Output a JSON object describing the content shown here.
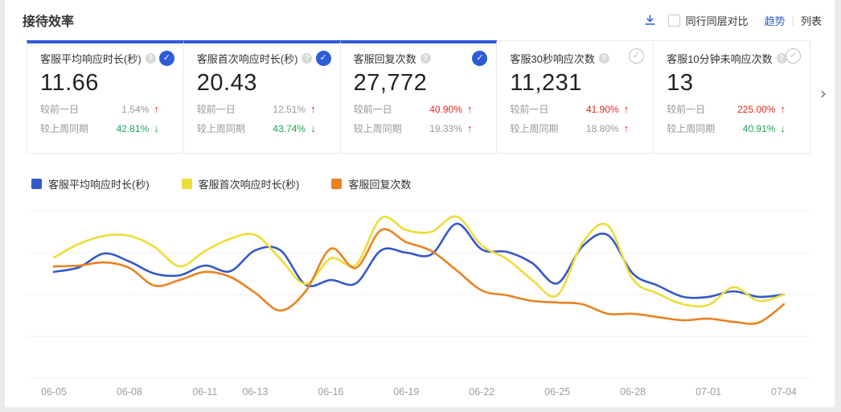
{
  "header": {
    "title": "接待效率",
    "compare_label": "同行同层对比",
    "compare_checked": false,
    "view_trend": "趋势",
    "view_divider": "|",
    "view_list": "列表"
  },
  "accent_color": "#2e5bd8",
  "cards": [
    {
      "title": "客服平均响应时长(秒)",
      "value": "11.66",
      "selected": true,
      "trends": [
        {
          "label": "较前一日",
          "value": "1.54%",
          "value_color": "#999999",
          "direction": "up",
          "arrow_color": "#e0281e"
        },
        {
          "label": "较上周同期",
          "value": "42.81%",
          "value_color": "#22a35f",
          "direction": "down",
          "arrow_color": "#22a35f"
        }
      ]
    },
    {
      "title": "客服首次响应时长(秒)",
      "value": "20.43",
      "selected": true,
      "trends": [
        {
          "label": "较前一日",
          "value": "12.51%",
          "value_color": "#999999",
          "direction": "up",
          "arrow_color": "#e0281e"
        },
        {
          "label": "较上周同期",
          "value": "43.74%",
          "value_color": "#22a35f",
          "direction": "down",
          "arrow_color": "#22a35f"
        }
      ]
    },
    {
      "title": "客服回复次数",
      "value": "27,772",
      "selected": true,
      "trends": [
        {
          "label": "较前一日",
          "value": "40.90%",
          "value_color": "#e0281e",
          "direction": "up",
          "arrow_color": "#e0281e"
        },
        {
          "label": "较上周同期",
          "value": "19.33%",
          "value_color": "#999999",
          "direction": "up",
          "arrow_color": "#e0281e"
        }
      ]
    },
    {
      "title": "客服30秒响应次数",
      "value": "11,231",
      "selected": false,
      "trends": [
        {
          "label": "较前一日",
          "value": "41.90%",
          "value_color": "#e0281e",
          "direction": "up",
          "arrow_color": "#e0281e"
        },
        {
          "label": "较上周同期",
          "value": "18.80%",
          "value_color": "#999999",
          "direction": "up",
          "arrow_color": "#e0281e"
        }
      ]
    },
    {
      "title": "客服10分钟未响应次数",
      "value": "13",
      "selected": false,
      "trends": [
        {
          "label": "较前一日",
          "value": "225.00%",
          "value_color": "#e0281e",
          "direction": "up",
          "arrow_color": "#e0281e"
        },
        {
          "label": "较上周同期",
          "value": "40.91%",
          "value_color": "#22a35f",
          "direction": "down",
          "arrow_color": "#22a35f"
        }
      ]
    }
  ],
  "chart_data": {
    "type": "line",
    "smooth": true,
    "x_labels": [
      {
        "label": "06-05",
        "day": 0
      },
      {
        "label": "06-08",
        "day": 3
      },
      {
        "label": "06-11",
        "day": 6
      },
      {
        "label": "06-13",
        "day": 8
      },
      {
        "label": "06-16",
        "day": 11
      },
      {
        "label": "06-19",
        "day": 14
      },
      {
        "label": "06-22",
        "day": 17
      },
      {
        "label": "06-25",
        "day": 20
      },
      {
        "label": "06-28",
        "day": 23
      },
      {
        "label": "07-01",
        "day": 26
      },
      {
        "label": "07-04",
        "day": 29
      }
    ],
    "days_total": 30,
    "y_axis": {
      "hidden": true,
      "note": "no y tick labels shown; values estimated on normalized 0-100 scale between bottom and top gridline",
      "gridline_count": 5
    },
    "ylim": [
      0,
      100
    ],
    "legend_position": "top-left",
    "series": [
      {
        "name": "客服平均响应时长(秒)",
        "color": "#3558c8",
        "values": [
          63.5,
          66.3,
          74.5,
          69.7,
          62.5,
          61.5,
          67.3,
          63.9,
          76.4,
          76.4,
          55.8,
          58.7,
          56.7,
          76.4,
          75.0,
          74.0,
          92.3,
          76.9,
          75.5,
          68.8,
          56.7,
          78.8,
          85.6,
          62.5,
          55.3,
          48.6,
          48.6,
          51.9,
          48.6,
          50.0
        ]
      },
      {
        "name": "客服首次响应时长(秒)",
        "color": "#eedc3a",
        "values": [
          72.1,
          80.3,
          85.1,
          85.1,
          78.4,
          66.8,
          76.0,
          83.2,
          85.6,
          71.2,
          56.3,
          71.6,
          67.8,
          95.7,
          88.5,
          87.5,
          96.6,
          79.3,
          71.2,
          58.7,
          49.5,
          80.8,
          91.3,
          59.1,
          50.5,
          44.2,
          43.8,
          54.3,
          46.2,
          50.0
        ]
      },
      {
        "name": "客服回复次数",
        "color": "#e98221",
        "values": [
          66.8,
          67.3,
          69.2,
          65.9,
          55.3,
          58.7,
          63.5,
          60.6,
          51.0,
          40.4,
          51.9,
          77.4,
          65.9,
          88.5,
          81.3,
          76.0,
          64.4,
          52.4,
          49.5,
          46.2,
          45.2,
          44.2,
          38.5,
          38.5,
          36.5,
          34.6,
          35.6,
          33.7,
          33.2,
          44.2
        ]
      }
    ]
  }
}
